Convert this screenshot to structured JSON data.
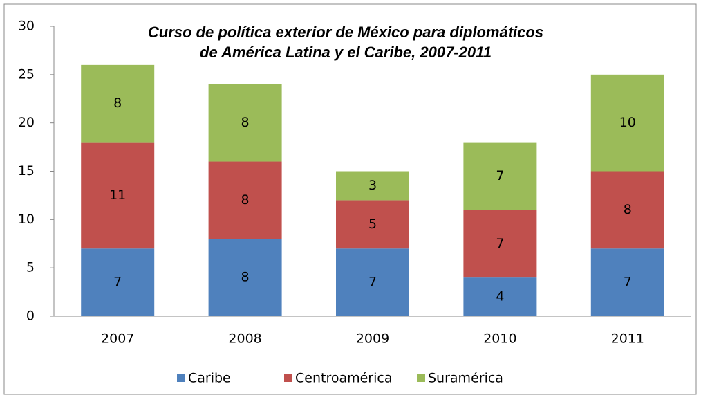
{
  "chart_data": {
    "type": "stacked_bar",
    "title": [
      "Curso de política exterior de México para diplomáticos",
      "de América Latina y el Caribe, 2007-2011"
    ],
    "categories": [
      "2007",
      "2008",
      "2009",
      "2010",
      "2011"
    ],
    "series": [
      {
        "name": "Caribe",
        "color": "#4f81bd",
        "values": [
          7,
          8,
          7,
          4,
          7
        ]
      },
      {
        "name": "Centroamérica",
        "color": "#c0504d",
        "values": [
          11,
          8,
          5,
          7,
          8
        ]
      },
      {
        "name": "Suramérica",
        "color": "#9bbb59",
        "values": [
          8,
          8,
          3,
          7,
          10
        ]
      }
    ],
    "ylim": [
      0,
      30
    ],
    "yticks": [
      0,
      5,
      10,
      15,
      20,
      25,
      30
    ],
    "grid": false,
    "legend": "bottom"
  }
}
